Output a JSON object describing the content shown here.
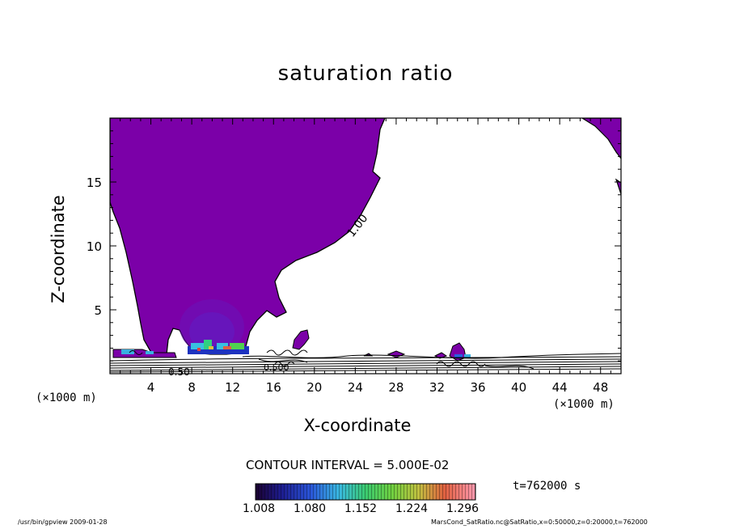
{
  "title": "saturation ratio",
  "chart_data": {
    "type": "contour",
    "title": "saturation ratio",
    "xlabel": "X-coordinate",
    "ylabel": "Z-coordinate",
    "x_unit": "(×1000 m)",
    "z_unit": "(×1000 m)",
    "xlim": [
      0,
      50
    ],
    "ylim": [
      0,
      20
    ],
    "x_ticks": [
      4,
      8,
      12,
      16,
      20,
      24,
      28,
      32,
      36,
      40,
      44,
      48
    ],
    "y_ticks": [
      5,
      10,
      15
    ],
    "contour_labels": [
      "1.00",
      "0.50",
      "0.500"
    ],
    "contour_interval": "CONTOUR INTERVAL = 5.000E-02",
    "colorbar_ticks": [
      "1.008",
      "1.080",
      "1.152",
      "1.224",
      "1.296"
    ],
    "time": "t=762000 s",
    "fill_color": "#7b00a8"
  },
  "footer": {
    "left": "/usr/bin/gpview   2009-01-28",
    "right": "MarsCond_SatRatio.nc@SatRatio,x=0:50000,z=0:20000,t=762000"
  }
}
